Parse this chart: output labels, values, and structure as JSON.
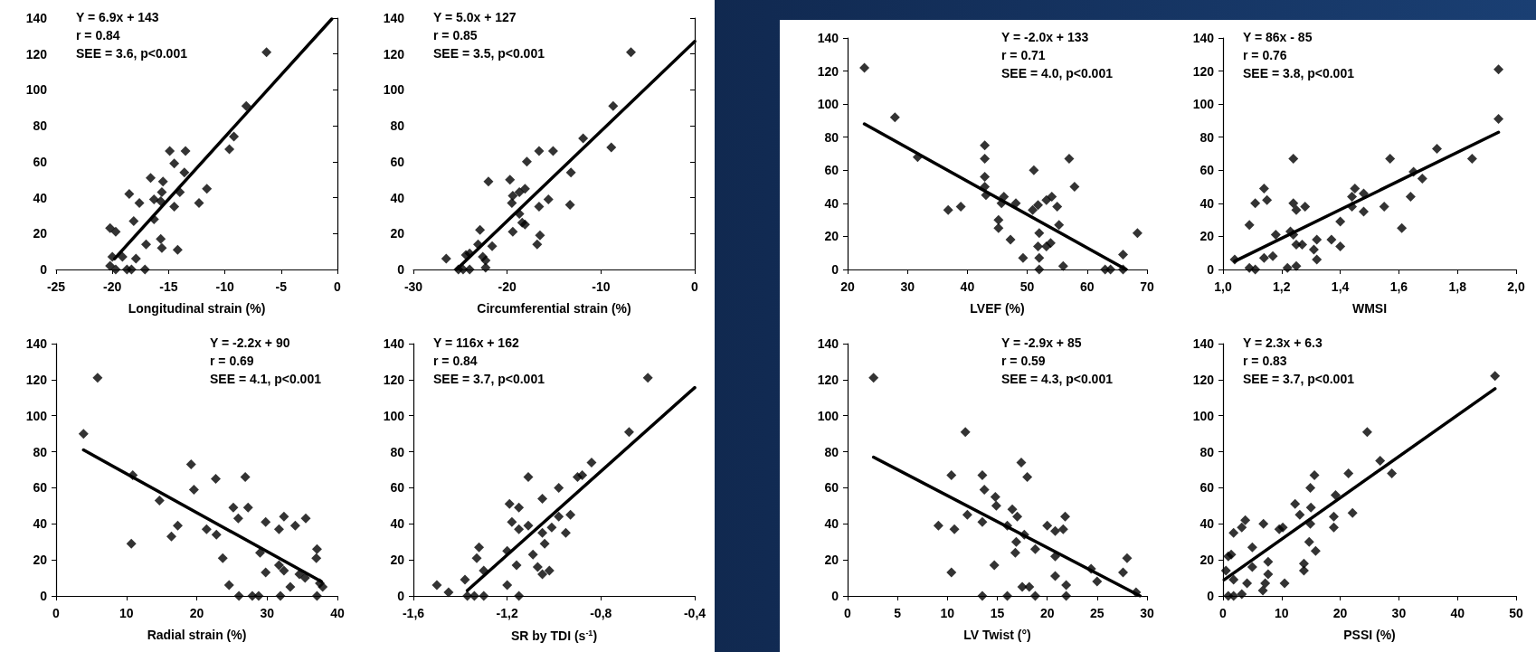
{
  "chart_data": [
    {
      "type": "scatter",
      "xlabel": "Longitudinal strain (%)",
      "annotations": [
        "Y = 6.9x + 143",
        "r = 0.84",
        "SEE = 3.6, p<0.001"
      ],
      "xlim": [
        -25,
        0
      ],
      "xticks": [
        -25,
        -20,
        -15,
        -10,
        -5,
        0
      ],
      "ylim": [
        0,
        140
      ],
      "yticks": [
        0,
        20,
        40,
        60,
        80,
        100,
        120,
        140
      ],
      "grid": false,
      "series": [
        {
          "type": "scatter",
          "marker": "diamond",
          "color": "#000000",
          "x": [
            -6.3,
            -8.1,
            -9.2,
            -9.6,
            -14.9,
            -13.5,
            -14.5,
            -13.6,
            -16.6,
            -15.5,
            -11.6,
            -18.5,
            -15.6,
            -14.0,
            -17.6,
            -16.3,
            -15.7,
            -14.5,
            -12.3,
            -18.1,
            -16.3,
            -20.2,
            -19.7,
            -15.7,
            -15.6,
            -17.0,
            -14.2,
            -20.0,
            -19.1,
            -17.9,
            -20.2,
            -19.7,
            -18.7,
            -18.3,
            -17.1
          ],
          "values": [
            121,
            91,
            74,
            67,
            66,
            66,
            59,
            54,
            51,
            49,
            45,
            42,
            43,
            43,
            37,
            39,
            38,
            35,
            37,
            27,
            28,
            23,
            21,
            17,
            12,
            14,
            11,
            7,
            7,
            6,
            2,
            0,
            0,
            0,
            0
          ]
        },
        {
          "type": "line",
          "marker": "none",
          "line_style": "solid",
          "color": "#000000",
          "x": [
            -19.8,
            -0.5
          ],
          "values": [
            6,
            139.5
          ]
        }
      ]
    },
    {
      "type": "scatter",
      "xlabel": "Circumferential strain (%)",
      "annotations": [
        "Y = 5.0x + 127",
        "r = 0.85",
        "SEE = 3.5, p<0.001"
      ],
      "xlim": [
        -30,
        0
      ],
      "xticks": [
        -30,
        -20,
        -10,
        0
      ],
      "ylim": [
        0,
        140
      ],
      "yticks": [
        0,
        20,
        40,
        60,
        80,
        100,
        120,
        140
      ],
      "grid": false,
      "series": [
        {
          "type": "scatter",
          "marker": "diamond",
          "color": "#000000",
          "x": [
            -6.8,
            -8.7,
            -8.9,
            -11.9,
            -13.2,
            -13.3,
            -16.6,
            -15.1,
            -17.9,
            -22.0,
            -19.7,
            -18.1,
            -18.7,
            -19.4,
            -19.5,
            -15.6,
            -16.6,
            -18.7,
            -18.1,
            -19.4,
            -18.4,
            -16.5,
            -16.8,
            -22.9,
            -23.1,
            -21.6,
            -24.0,
            -24.4,
            -22.6,
            -22.3,
            -26.5,
            -25.2,
            -24.7,
            -24.0,
            -22.3
          ],
          "values": [
            121,
            91,
            68,
            73,
            54,
            36,
            66,
            66,
            60,
            49,
            50,
            45,
            43,
            41,
            37,
            39,
            35,
            31,
            25,
            21,
            26,
            19,
            14,
            22,
            14,
            13,
            9,
            8,
            7,
            5,
            6,
            0,
            0,
            0,
            1
          ]
        },
        {
          "type": "line",
          "marker": "none",
          "line_style": "solid",
          "color": "#000000",
          "x": [
            -25.4,
            0
          ],
          "values": [
            0,
            127
          ]
        }
      ]
    },
    {
      "type": "scatter",
      "xlabel": "Radial strain (%)",
      "annotations": [
        "Y = -2.2x + 90",
        "r = 0.69",
        "SEE = 4.1, p<0.001"
      ],
      "xlim": [
        0,
        40
      ],
      "xticks": [
        0,
        10,
        20,
        30,
        40
      ],
      "ylim": [
        0,
        140
      ],
      "yticks": [
        0,
        20,
        40,
        60,
        80,
        100,
        120,
        140
      ],
      "grid": false,
      "series": [
        {
          "type": "scatter",
          "marker": "diamond",
          "color": "#000000",
          "x": [
            5.9,
            3.9,
            10.9,
            10.7,
            14.7,
            16.4,
            17.3,
            19.2,
            19.6,
            21.4,
            22.8,
            22.7,
            23.7,
            24.6,
            25.2,
            25.9,
            26.9,
            27.3,
            26.0,
            27.9,
            28.8,
            29.0,
            29.8,
            29.8,
            31.9,
            31.7,
            32.4,
            31.7,
            32.4,
            33.3,
            34.0,
            34.6,
            35.4,
            35.5,
            37.1,
            37.0,
            37.1,
            37.5,
            37.9
          ],
          "values": [
            121,
            90,
            67,
            29,
            53,
            33,
            39,
            73,
            59,
            37,
            34,
            65,
            21,
            6,
            49,
            43,
            66,
            49,
            0,
            0,
            0,
            24,
            41,
            13,
            0,
            37,
            44,
            17,
            14,
            5,
            39,
            12,
            10,
            43,
            26,
            21,
            0,
            7,
            5
          ]
        },
        {
          "type": "line",
          "marker": "none",
          "line_style": "solid",
          "color": "#000000",
          "x": [
            3.9,
            37.7
          ],
          "values": [
            81,
            8
          ]
        }
      ]
    },
    {
      "type": "scatter",
      "xlabel": "SR by TDI (s$^{-1}$)",
      "annotations": [
        "Y = 116x + 162",
        "r = 0.84",
        "SEE = 3.7, p<0.001"
      ],
      "xlim": [
        -1.6,
        -0.4
      ],
      "xticks": [
        {
          "value": -1.6,
          "label": "-1,6"
        },
        {
          "value": -1.2,
          "label": "-1,2"
        },
        {
          "value": -0.8,
          "label": "-0,8"
        },
        {
          "value": -0.4,
          "label": "-0,4"
        }
      ],
      "ylim": [
        0,
        140
      ],
      "yticks": [
        0,
        20,
        40,
        60,
        80,
        100,
        120,
        140
      ],
      "grid": false,
      "series": [
        {
          "type": "scatter",
          "marker": "diamond",
          "color": "#000000",
          "x": [
            -0.6,
            -0.68,
            -0.84,
            -0.88,
            -0.9,
            -1.11,
            -0.98,
            -1.05,
            -1.19,
            -1.15,
            -1.18,
            -1.15,
            -1.11,
            -0.98,
            -0.93,
            -1.01,
            -1.05,
            -0.95,
            -1.04,
            -1.09,
            -1.07,
            -1.05,
            -1.02,
            -1.16,
            -1.2,
            -1.32,
            -1.33,
            -1.3,
            -1.38,
            -1.5,
            -1.45,
            -1.37,
            -1.34,
            -1.3,
            -1.2,
            -1.15
          ],
          "values": [
            121,
            91,
            74,
            67,
            66,
            66,
            60,
            54,
            51,
            49,
            41,
            37,
            39,
            44,
            45,
            38,
            35,
            35,
            29,
            23,
            16,
            12,
            14,
            17,
            25,
            27,
            21,
            14,
            9,
            6,
            2,
            0,
            0,
            0,
            6,
            0
          ]
        },
        {
          "type": "line",
          "marker": "none",
          "line_style": "solid",
          "color": "#000000",
          "x": [
            -1.37,
            -0.4
          ],
          "values": [
            3,
            115.6
          ]
        }
      ]
    },
    {
      "type": "scatter",
      "xlabel": "LVEF (%)",
      "annotations": [
        "Y = -2.0x + 133",
        "r = 0.71",
        "SEE = 4.0, p<0.001"
      ],
      "xlim": [
        20,
        70
      ],
      "xticks": [
        20,
        30,
        40,
        50,
        60,
        70
      ],
      "ylim": [
        0,
        140
      ],
      "yticks": [
        0,
        20,
        40,
        60,
        80,
        100,
        120,
        140
      ],
      "grid": false,
      "series": [
        {
          "type": "scatter",
          "marker": "diamond",
          "color": "#000000",
          "x": [
            22.8,
            27.9,
            31.7,
            36.8,
            38.9,
            42.9,
            42.9,
            42.9,
            42.9,
            43.1,
            46.1,
            45.7,
            48.1,
            45.2,
            45.2,
            47.2,
            49.3,
            51.1,
            50.9,
            51.8,
            53.2,
            54.1,
            52.0,
            51.8,
            53.2,
            53.9,
            52.0,
            52.0,
            55.0,
            55.3,
            56.0,
            57.0,
            57.9,
            63.0,
            63.9,
            66.0,
            66.0,
            68.4
          ],
          "values": [
            122,
            92,
            68,
            36,
            38,
            75,
            67,
            56,
            50,
            45,
            44,
            40,
            40,
            30,
            25,
            18,
            7,
            60,
            36,
            39,
            42,
            44,
            22,
            14,
            14,
            16,
            7,
            0,
            38,
            27,
            2,
            67,
            50,
            0,
            0,
            9,
            0,
            22
          ]
        },
        {
          "type": "line",
          "marker": "none",
          "line_style": "solid",
          "color": "#000000",
          "x": [
            22.8,
            66.5
          ],
          "values": [
            88,
            0
          ]
        }
      ]
    },
    {
      "type": "scatter",
      "xlabel": "WMSI",
      "annotations": [
        "Y = 86x - 85",
        "r = 0.76",
        "SEE = 3.8, p<0.001"
      ],
      "xlim": [
        1.0,
        2.0
      ],
      "xticks": [
        {
          "value": 1.0,
          "label": "1,0"
        },
        {
          "value": 1.2,
          "label": "1,2"
        },
        {
          "value": 1.4,
          "label": "1,4"
        },
        {
          "value": 1.6,
          "label": "1,6"
        },
        {
          "value": 1.8,
          "label": "1,8"
        },
        {
          "value": 2.0,
          "label": "2,0"
        }
      ],
      "ylim": [
        0,
        140
      ],
      "yticks": [
        0,
        20,
        40,
        60,
        80,
        100,
        120,
        140
      ],
      "grid": false,
      "series": [
        {
          "type": "scatter",
          "marker": "diamond",
          "color": "#000000",
          "x": [
            1.94,
            1.94,
            1.85,
            1.73,
            1.68,
            1.65,
            1.64,
            1.61,
            1.57,
            1.55,
            1.45,
            1.44,
            1.44,
            1.48,
            1.48,
            1.4,
            1.4,
            1.37,
            1.32,
            1.31,
            1.32,
            1.24,
            1.24,
            1.25,
            1.28,
            1.24,
            1.23,
            1.25,
            1.27,
            1.25,
            1.22,
            1.14,
            1.15,
            1.11,
            1.09,
            1.18,
            1.14,
            1.17,
            1.09,
            1.11,
            1.04
          ],
          "values": [
            121,
            91,
            67,
            73,
            55,
            59,
            44,
            25,
            67,
            38,
            49,
            44,
            38,
            46,
            35,
            29,
            14,
            18,
            18,
            12,
            6,
            67,
            40,
            36,
            38,
            21,
            23,
            15,
            15,
            2,
            1,
            49,
            42,
            40,
            27,
            21,
            7,
            8,
            1,
            0,
            6
          ]
        },
        {
          "type": "line",
          "marker": "none",
          "line_style": "solid",
          "color": "#000000",
          "x": [
            1.04,
            1.94
          ],
          "values": [
            5,
            83
          ]
        }
      ]
    },
    {
      "type": "scatter",
      "xlabel": "LV Twist (°)",
      "annotations": [
        "Y = -2.9x + 85",
        "r = 0.59",
        "SEE = 4.3, p<0.001"
      ],
      "xlim": [
        0,
        30
      ],
      "xticks": [
        0,
        5,
        10,
        15,
        20,
        25,
        30
      ],
      "ylim": [
        0,
        140
      ],
      "yticks": [
        0,
        20,
        40,
        60,
        80,
        100,
        120,
        140
      ],
      "grid": false,
      "series": [
        {
          "type": "scatter",
          "marker": "diamond",
          "color": "#000000",
          "x": [
            2.6,
            11.8,
            10.4,
            13.5,
            13.7,
            12.0,
            13.5,
            14.8,
            14.9,
            9.1,
            10.7,
            10.4,
            13.5,
            16.0,
            14.7,
            16.0,
            17.4,
            18.0,
            16.5,
            17.0,
            17.7,
            16.9,
            16.8,
            17.5,
            18.2,
            18.8,
            18.8,
            20.0,
            20.8,
            20.8,
            21.8,
            21.6,
            20.8,
            21.9,
            21.9,
            24.4,
            25.0,
            27.6,
            28.0,
            28.9
          ],
          "values": [
            121,
            91,
            67,
            67,
            59,
            45,
            41,
            55,
            50,
            39,
            37,
            13,
            0,
            0,
            17,
            39,
            74,
            66,
            48,
            44,
            34,
            30,
            24,
            5,
            5,
            0,
            26,
            39,
            36,
            22,
            44,
            37,
            11,
            6,
            0,
            15,
            8,
            13,
            21,
            2
          ]
        },
        {
          "type": "line",
          "marker": "none",
          "line_style": "solid",
          "color": "#000000",
          "x": [
            2.6,
            29.3
          ],
          "values": [
            77,
            0
          ]
        }
      ]
    },
    {
      "type": "scatter",
      "xlabel": "PSSI (%)",
      "annotations": [
        "Y = 2.3x + 6.3",
        "r = 0.83",
        "SEE = 3.7, p<0.001"
      ],
      "xlim": [
        0,
        50
      ],
      "xticks": [
        0,
        10,
        20,
        30,
        40,
        50
      ],
      "ylim": [
        0,
        140
      ],
      "yticks": [
        0,
        20,
        40,
        60,
        80,
        100,
        120,
        140
      ],
      "grid": false,
      "series": [
        {
          "type": "scatter",
          "marker": "diamond",
          "color": "#000000",
          "x": [
            46.4,
            24.6,
            26.8,
            28.8,
            21.4,
            15.6,
            14.9,
            19.2,
            12.3,
            13.1,
            15.0,
            22.1,
            18.9,
            18.9,
            14.9,
            14.7,
            15.8,
            13.8,
            13.8,
            6.9,
            10.2,
            9.6,
            3.8,
            3.2,
            1.8,
            5.0,
            1.4,
            0.9,
            5.0,
            0.5,
            1.8,
            4.1,
            7.7,
            7.7,
            7.2,
            6.8,
            10.5,
            0.9,
            1.8,
            3.2
          ],
          "values": [
            122,
            91,
            75,
            68,
            68,
            67,
            60,
            56,
            51,
            45,
            49,
            46,
            44,
            38,
            40,
            30,
            25,
            18,
            14,
            40,
            38,
            37,
            42,
            38,
            35,
            27,
            23,
            22,
            16,
            14,
            9,
            7,
            19,
            12,
            7,
            3,
            7,
            0,
            0,
            1
          ]
        },
        {
          "type": "line",
          "marker": "none",
          "line_style": "solid",
          "color": "#000000",
          "x": [
            0.2,
            46.4
          ],
          "values": [
            9,
            115
          ]
        }
      ]
    }
  ]
}
